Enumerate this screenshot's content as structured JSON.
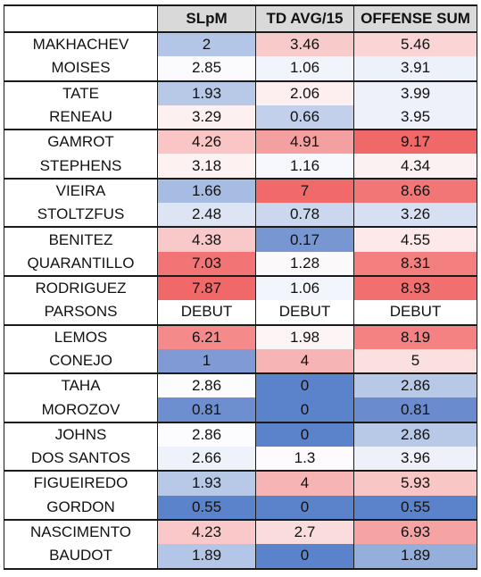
{
  "headers": [
    "",
    "SLpM",
    "TD AVG/15",
    "OFFENSE SUM"
  ],
  "rows": [
    {
      "name": "MAKHACHEV",
      "slpm": "2",
      "td": "3.46",
      "sum": "5.46",
      "colors": [
        "#b4c6e7",
        "#f8cbcb",
        "#fbd5d5"
      ],
      "group_start": true
    },
    {
      "name": "MOISES",
      "slpm": "2.85",
      "td": "1.06",
      "sum": "3.91",
      "colors": [
        "#fbfbfe",
        "#f1f4fb",
        "#edf1fa"
      ],
      "group_start": false
    },
    {
      "name": "TATE",
      "slpm": "1.93",
      "td": "2.06",
      "sum": "3.99",
      "colors": [
        "#b8c9e8",
        "#fdeef0",
        "#eef1fa"
      ],
      "group_start": true
    },
    {
      "name": "RENEAU",
      "slpm": "3.29",
      "td": "0.66",
      "sum": "3.95",
      "colors": [
        "#fdf0f0",
        "#c2d0eb",
        "#eef1fa"
      ],
      "group_start": false
    },
    {
      "name": "GAMROT",
      "slpm": "4.26",
      "td": "4.91",
      "sum": "9.17",
      "colors": [
        "#f9c5c5",
        "#f5a0a0",
        "#f06868"
      ],
      "group_start": true
    },
    {
      "name": "STEPHENS",
      "slpm": "3.18",
      "td": "1.16",
      "sum": "4.34",
      "colors": [
        "#fdf1f1",
        "#f6f8fd",
        "#fcf1f2"
      ],
      "group_start": false
    },
    {
      "name": "VIEIRA",
      "slpm": "1.66",
      "td": "7",
      "sum": "8.66",
      "colors": [
        "#a6bce3",
        "#f06a6a",
        "#f27676"
      ],
      "group_start": true
    },
    {
      "name": "STOLTZFUS",
      "slpm": "2.48",
      "td": "0.78",
      "sum": "3.26",
      "colors": [
        "#dde5f4",
        "#cbd7ee",
        "#d6e0f2"
      ],
      "group_start": false
    },
    {
      "name": "BENITEZ",
      "slpm": "4.38",
      "td": "0.17",
      "sum": "4.55",
      "colors": [
        "#f9c8c8",
        "#7896d2",
        "#fde9ea"
      ],
      "group_start": true
    },
    {
      "name": "QUARANTILLO",
      "slpm": "7.03",
      "td": "1.28",
      "sum": "8.31",
      "colors": [
        "#f27474",
        "#fcf9fb",
        "#f47f7f"
      ],
      "group_start": false
    },
    {
      "name": "RODRIGUEZ",
      "slpm": "7.87",
      "td": "1.06",
      "sum": "8.93",
      "colors": [
        "#f06868",
        "#f3f5fc",
        "#f26f6f"
      ],
      "group_start": true
    },
    {
      "name": "PARSONS",
      "slpm": "DEBUT",
      "td": "DEBUT",
      "sum": "DEBUT",
      "colors": [
        "#ffffff",
        "#ffffff",
        "#ffffff"
      ],
      "group_start": false
    },
    {
      "name": "LEMOS",
      "slpm": "6.21",
      "td": "1.98",
      "sum": "8.19",
      "colors": [
        "#f58a8a",
        "#fdf4f5",
        "#f48282"
      ],
      "group_start": true
    },
    {
      "name": "CONEJO",
      "slpm": "1",
      "td": "4",
      "sum": "5",
      "colors": [
        "#7f9ad4",
        "#f6b4b4",
        "#fbe0e0"
      ],
      "group_start": false
    },
    {
      "name": "TAHA",
      "slpm": "2.86",
      "td": "0",
      "sum": "2.86",
      "colors": [
        "#fcfcfe",
        "#5b83cb",
        "#b8c9e8"
      ],
      "group_start": true
    },
    {
      "name": "MOROZOV",
      "slpm": "0.81",
      "td": "0",
      "sum": "0.81",
      "colors": [
        "#6d8fcf",
        "#5b83cb",
        "#6a8ccf"
      ],
      "group_start": false
    },
    {
      "name": "JOHNS",
      "slpm": "2.86",
      "td": "0",
      "sum": "2.86",
      "colors": [
        "#fcfcfe",
        "#5b83cb",
        "#b8c9e8"
      ],
      "group_start": true
    },
    {
      "name": "DOS SANTOS",
      "slpm": "2.66",
      "td": "1.3",
      "sum": "3.96",
      "colors": [
        "#eef2fa",
        "#fdfbfd",
        "#eef1fa"
      ],
      "group_start": false
    },
    {
      "name": "FIGUEIREDO",
      "slpm": "1.93",
      "td": "4",
      "sum": "5.93",
      "colors": [
        "#b8c9e8",
        "#f6b4b4",
        "#f9c6c6"
      ],
      "group_start": true
    },
    {
      "name": "GORDON",
      "slpm": "0.55",
      "td": "0",
      "sum": "0.55",
      "colors": [
        "#5b83cb",
        "#5b83cb",
        "#5b83cb"
      ],
      "group_start": false
    },
    {
      "name": "NASCIMENTO",
      "slpm": "4.23",
      "td": "2.7",
      "sum": "6.93",
      "colors": [
        "#fac8c8",
        "#fbdcdc",
        "#f6a3a3"
      ],
      "group_start": true
    },
    {
      "name": "BAUDOT",
      "slpm": "1.89",
      "td": "0",
      "sum": "1.89",
      "colors": [
        "#b4c6e7",
        "#5b83cb",
        "#95afdd"
      ],
      "group_start": false
    }
  ]
}
